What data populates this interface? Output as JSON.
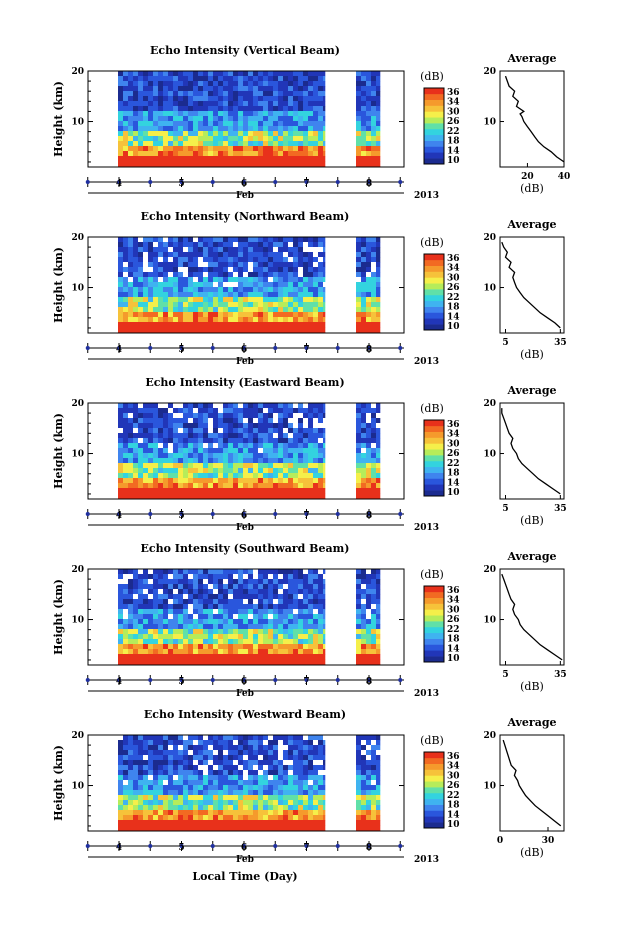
{
  "figure": {
    "xlabel": "Local Time (Day)"
  },
  "colorbar_colors": [
    "#1b2b8f",
    "#2136b8",
    "#2a56dc",
    "#3f84ee",
    "#3fb3f0",
    "#33d3df",
    "#60e0a8",
    "#b6ec5a",
    "#f5ef4a",
    "#f6c23a",
    "#f59a2c",
    "#f26a22",
    "#e8311b"
  ],
  "panels": [
    {
      "title": "Echo Intensity (Vertical Beam)",
      "ylabel": "Height (km)",
      "yticks": [
        "20",
        "10"
      ],
      "xticks": [
        "4",
        "5",
        "6",
        "7",
        "8"
      ],
      "month": "Feb",
      "year": "2013",
      "colorbar": {
        "unit": "(dB)",
        "ticks": [
          "36",
          "34",
          "30",
          "26",
          "22",
          "18",
          "14",
          "10"
        ]
      },
      "average": {
        "title": "Average",
        "xlabel": "(dB)",
        "xticks": [
          "20",
          "40"
        ],
        "yticks": [
          "20",
          "10"
        ]
      }
    },
    {
      "title": "Echo Intensity (Northward Beam)",
      "ylabel": "Height (km)",
      "yticks": [
        "20",
        "10"
      ],
      "xticks": [
        "4",
        "5",
        "6",
        "7",
        "8"
      ],
      "month": "Feb",
      "year": "2013",
      "colorbar": {
        "unit": "(dB)",
        "ticks": [
          "36",
          "34",
          "30",
          "26",
          "22",
          "18",
          "14",
          "10"
        ]
      },
      "average": {
        "title": "Average",
        "xlabel": "(dB)",
        "xticks": [
          "5",
          "35"
        ],
        "yticks": [
          "20",
          "10"
        ]
      }
    },
    {
      "title": "Echo Intensity (Eastward Beam)",
      "ylabel": "Height (km)",
      "yticks": [
        "20",
        "10"
      ],
      "xticks": [
        "4",
        "5",
        "6",
        "7",
        "8"
      ],
      "month": "Feb",
      "year": "2013",
      "colorbar": {
        "unit": "(dB)",
        "ticks": [
          "36",
          "34",
          "30",
          "26",
          "22",
          "18",
          "14",
          "10"
        ]
      },
      "average": {
        "title": "Average",
        "xlabel": "(dB)",
        "xticks": [
          "5",
          "35"
        ],
        "yticks": [
          "20",
          "10"
        ]
      }
    },
    {
      "title": "Echo Intensity (Southward Beam)",
      "ylabel": "Height (km)",
      "yticks": [
        "20",
        "10"
      ],
      "xticks": [
        "4",
        "5",
        "6",
        "7",
        "8"
      ],
      "month": "Feb",
      "year": "2013",
      "colorbar": {
        "unit": "(dB)",
        "ticks": [
          "36",
          "34",
          "30",
          "26",
          "22",
          "18",
          "14",
          "10"
        ]
      },
      "average": {
        "title": "Average",
        "xlabel": "(dB)",
        "xticks": [
          "5",
          "35"
        ],
        "yticks": [
          "20",
          "10"
        ]
      }
    },
    {
      "title": "Echo Intensity (Westward Beam)",
      "ylabel": "Height (km)",
      "yticks": [
        "20",
        "10"
      ],
      "xticks": [
        "4",
        "5",
        "6",
        "7",
        "8"
      ],
      "month": "Feb",
      "year": "2013",
      "colorbar": {
        "unit": "(dB)",
        "ticks": [
          "36",
          "34",
          "30",
          "26",
          "22",
          "18",
          "14",
          "10"
        ]
      },
      "average": {
        "title": "Average",
        "xlabel": "(dB)",
        "xticks": [
          "0",
          "30"
        ],
        "yticks": [
          "20",
          "10"
        ]
      }
    }
  ],
  "chart_data": [
    {
      "type": "heatmap",
      "title": "Echo Intensity (Vertical Beam)",
      "xlabel": "Feb 2013",
      "ylabel": "Height (km)",
      "x_range_days": [
        3.5,
        8.5
      ],
      "ylim_km": [
        1,
        20
      ],
      "color_range_db": [
        10,
        38
      ],
      "data_gaps_days": [
        [
          7.25,
          7.75
        ]
      ]
    },
    {
      "type": "line",
      "title": "Average",
      "xlabel": "(dB)",
      "xlim": [
        5,
        40
      ],
      "ylim": [
        1,
        20
      ],
      "x": [
        40,
        36,
        33,
        29,
        26,
        24,
        22,
        20,
        18,
        17,
        16,
        18,
        14,
        15,
        12,
        13,
        10,
        9,
        8
      ],
      "y": [
        2,
        3,
        4,
        5,
        6,
        7,
        8,
        9,
        10,
        11,
        11.5,
        12,
        13,
        14,
        15,
        16,
        17,
        18,
        19
      ]
    },
    {
      "type": "heatmap",
      "title": "Echo Intensity (Northward Beam)",
      "xlabel": "Feb 2013",
      "ylabel": "Height (km)",
      "x_range_days": [
        3.5,
        8.5
      ],
      "ylim_km": [
        1,
        20
      ],
      "color_range_db": [
        10,
        38
      ],
      "data_gaps_days": [
        [
          7.25,
          7.75
        ]
      ]
    },
    {
      "type": "line",
      "title": "Average",
      "xlabel": "(dB)",
      "xlim": [
        2,
        37
      ],
      "ylim": [
        1,
        20
      ],
      "x": [
        35,
        32,
        28,
        24,
        21,
        18,
        15,
        13,
        11,
        10,
        9,
        10,
        7,
        8,
        5,
        6,
        4,
        3
      ],
      "y": [
        2,
        3,
        4,
        5,
        6,
        7,
        8,
        9,
        10,
        11,
        12,
        13,
        14,
        15,
        16,
        17,
        18,
        19
      ]
    },
    {
      "type": "heatmap",
      "title": "Echo Intensity (Eastward Beam)",
      "xlabel": "Feb 2013",
      "ylabel": "Height (km)",
      "x_range_days": [
        3.5,
        8.5
      ],
      "ylim_km": [
        1,
        20
      ],
      "color_range_db": [
        10,
        38
      ],
      "data_gaps_days": [
        [
          7.25,
          7.75
        ]
      ]
    },
    {
      "type": "line",
      "title": "Average",
      "xlabel": "(dB)",
      "xlim": [
        2,
        37
      ],
      "ylim": [
        1,
        20
      ],
      "x": [
        35,
        31,
        27,
        23,
        20,
        17,
        14,
        12,
        11,
        9,
        8,
        9,
        7,
        6,
        5,
        4,
        3,
        3
      ],
      "y": [
        2,
        3,
        4,
        5,
        6,
        7,
        8,
        9,
        10,
        11,
        12,
        13,
        14,
        15,
        16,
        17,
        18,
        19
      ]
    },
    {
      "type": "heatmap",
      "title": "Echo Intensity (Southward Beam)",
      "xlabel": "Feb 2013",
      "ylabel": "Height (km)",
      "x_range_days": [
        3.5,
        8.5
      ],
      "ylim_km": [
        1,
        20
      ],
      "color_range_db": [
        10,
        38
      ],
      "data_gaps_days": [
        [
          7.25,
          7.75
        ]
      ]
    },
    {
      "type": "line",
      "title": "Average",
      "xlabel": "(dB)",
      "xlim": [
        2,
        37
      ],
      "ylim": [
        1,
        20
      ],
      "x": [
        36,
        32,
        28,
        24,
        21,
        18,
        15,
        13,
        12,
        10,
        9,
        10,
        8,
        7,
        6,
        5,
        4,
        3
      ],
      "y": [
        2,
        3,
        4,
        5,
        6,
        7,
        8,
        9,
        10,
        11,
        12,
        13,
        14,
        15,
        16,
        17,
        18,
        19
      ]
    },
    {
      "type": "heatmap",
      "title": "Echo Intensity (Westward Beam)",
      "xlabel": "Feb 2013",
      "ylabel": "Height (km)",
      "x_range_days": [
        3.5,
        8.5
      ],
      "ylim_km": [
        1,
        20
      ],
      "color_range_db": [
        10,
        38
      ],
      "data_gaps_days": [
        [
          7.25,
          7.75
        ]
      ]
    },
    {
      "type": "line",
      "title": "Average",
      "xlabel": "(dB)",
      "xlim": [
        0,
        40
      ],
      "ylim": [
        1,
        20
      ],
      "x": [
        38,
        34,
        30,
        26,
        22,
        19,
        16,
        14,
        12,
        11,
        9,
        10,
        7,
        6,
        5,
        4,
        3,
        2
      ],
      "y": [
        2,
        3,
        4,
        5,
        6,
        7,
        8,
        9,
        10,
        11,
        12,
        13,
        14,
        15,
        16,
        17,
        18,
        19
      ]
    }
  ]
}
